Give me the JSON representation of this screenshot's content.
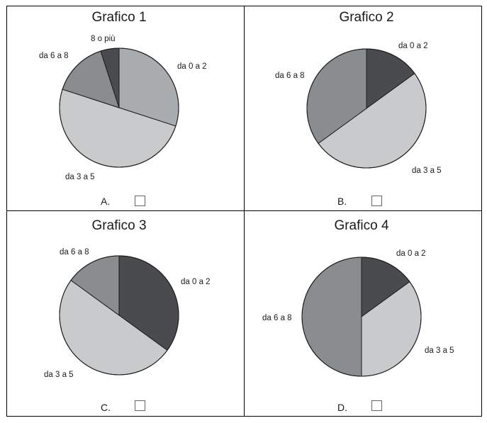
{
  "chart_data": [
    {
      "type": "pie",
      "title": "Grafico 1",
      "option": "A.",
      "slices": [
        {
          "label": "da 0 a 2",
          "value": 30,
          "color": "#a9acae"
        },
        {
          "label": "da 3 a 5",
          "value": 50,
          "color": "#c9cacb"
        },
        {
          "label": "da 6 a 8",
          "value": 15,
          "color": "#8a8d8f"
        },
        {
          "label": "8 o più",
          "value": 5,
          "color": "#494b4e"
        }
      ]
    },
    {
      "type": "pie",
      "title": "Grafico 2",
      "option": "B.",
      "slices": [
        {
          "label": "da 0 a 2",
          "value": 15,
          "color": "#494b4e"
        },
        {
          "label": "da 3 a 5",
          "value": 50,
          "color": "#c9cacb"
        },
        {
          "label": "da 6 a 8",
          "value": 35,
          "color": "#8a8d8f"
        }
      ]
    },
    {
      "type": "pie",
      "title": "Grafico 3",
      "option": "C.",
      "slices": [
        {
          "label": "da 0 a 2",
          "value": 35,
          "color": "#494b4e"
        },
        {
          "label": "da 3 a 5",
          "value": 50,
          "color": "#c9cacb"
        },
        {
          "label": "da 6 a 8",
          "value": 15,
          "color": "#8a8d8f"
        }
      ]
    },
    {
      "type": "pie",
      "title": "Grafico 4",
      "option": "D.",
      "slices": [
        {
          "label": "da 0 a 2",
          "value": 15,
          "color": "#494b4e"
        },
        {
          "label": "da 3 a 5",
          "value": 35,
          "color": "#c9cacb"
        },
        {
          "label": "da 6 a 8",
          "value": 50,
          "color": "#8a8d8f"
        }
      ]
    }
  ]
}
